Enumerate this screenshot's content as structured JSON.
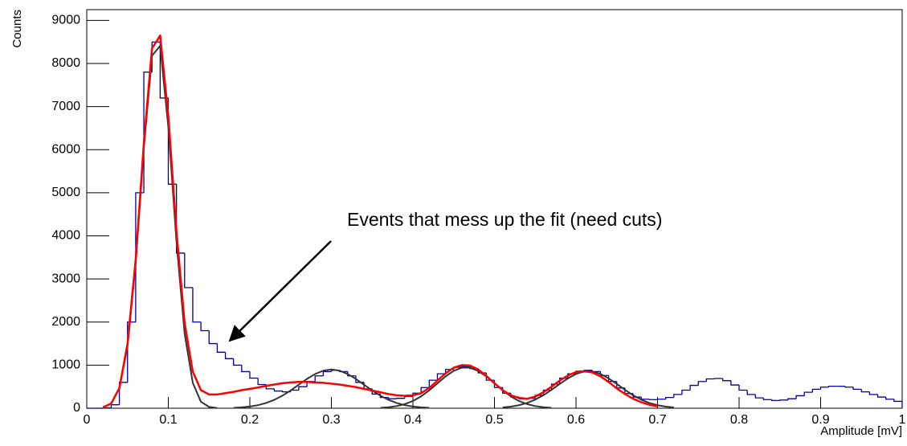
{
  "chart_data": {
    "type": "histogram",
    "x_label": "Amplitude [mV]",
    "y_label": "Counts",
    "annotation": "Events that mess up the fit (need cuts)",
    "xlim": [
      0,
      1
    ],
    "ylim": [
      0,
      9250
    ],
    "xticks": [
      0,
      0.1,
      0.2,
      0.3,
      0.4,
      0.5,
      0.6,
      0.7,
      0.8,
      0.9,
      1
    ],
    "yticks": [
      0,
      1000,
      2000,
      3000,
      4000,
      5000,
      6000,
      7000,
      8000,
      9000
    ],
    "color": "#000099",
    "bins": [
      0,
      0.01,
      0.02,
      0.03,
      0.04,
      0.05,
      0.06,
      0.07,
      0.08,
      0.09,
      0.1,
      0.11,
      0.12,
      0.13,
      0.14,
      0.15,
      0.16,
      0.17,
      0.18,
      0.19,
      0.2,
      0.21,
      0.22,
      0.23,
      0.24,
      0.25,
      0.26,
      0.27,
      0.28,
      0.29,
      0.3,
      0.31,
      0.32,
      0.33,
      0.34,
      0.35,
      0.36,
      0.37,
      0.38,
      0.39,
      0.4,
      0.41,
      0.42,
      0.43,
      0.44,
      0.45,
      0.46,
      0.47,
      0.48,
      0.49,
      0.5,
      0.51,
      0.52,
      0.53,
      0.54,
      0.55,
      0.56,
      0.57,
      0.58,
      0.59,
      0.6,
      0.61,
      0.62,
      0.63,
      0.64,
      0.65,
      0.66,
      0.67,
      0.68,
      0.69,
      0.7,
      0.71,
      0.72,
      0.73,
      0.74,
      0.75,
      0.76,
      0.77,
      0.78,
      0.79,
      0.8,
      0.81,
      0.82,
      0.83,
      0.84,
      0.85,
      0.86,
      0.87,
      0.88,
      0.89,
      0.9,
      0.91,
      0.92,
      0.93,
      0.94,
      0.95,
      0.96,
      0.97,
      0.98,
      0.99,
      1
    ],
    "counts": [
      0,
      0,
      10,
      80,
      600,
      2000,
      5000,
      7800,
      8500,
      7200,
      5200,
      3600,
      2800,
      2000,
      1800,
      1500,
      1300,
      1150,
      1000,
      850,
      700,
      550,
      450,
      400,
      380,
      420,
      500,
      620,
      750,
      850,
      880,
      850,
      750,
      600,
      450,
      330,
      250,
      220,
      230,
      270,
      350,
      480,
      650,
      800,
      900,
      950,
      970,
      920,
      820,
      650,
      480,
      350,
      260,
      220,
      230,
      300,
      420,
      560,
      700,
      800,
      860,
      880,
      850,
      760,
      620,
      470,
      340,
      260,
      210,
      200,
      210,
      250,
      320,
      420,
      530,
      620,
      680,
      690,
      640,
      540,
      420,
      320,
      240,
      200,
      180,
      190,
      220,
      290,
      370,
      440,
      490,
      510,
      510,
      490,
      440,
      380,
      320,
      260,
      210,
      160
    ],
    "series": [
      {
        "color": "#333333",
        "x": [
          0.02,
          0.03,
          0.04,
          0.05,
          0.06,
          0.07,
          0.08,
          0.09,
          0.1,
          0.11,
          0.12,
          0.13,
          0.14,
          0.15,
          0.16
        ],
        "values": [
          21,
          112,
          460,
          1440,
          3360,
          6030,
          8180,
          8410,
          6530,
          3870,
          1730,
          590,
          150,
          30,
          4
        ]
      },
      {
        "color": "#333333",
        "x": [
          0.18,
          0.19,
          0.2,
          0.21,
          0.22,
          0.23,
          0.24,
          0.25,
          0.26,
          0.27,
          0.28,
          0.29,
          0.3,
          0.31,
          0.32,
          0.33,
          0.34,
          0.35,
          0.36,
          0.37,
          0.38,
          0.39,
          0.4,
          0.41,
          0.42
        ],
        "values": [
          10,
          20,
          40,
          71,
          122,
          195,
          292,
          412,
          546,
          680,
          794,
          872,
          900,
          872,
          794,
          680,
          546,
          412,
          292,
          195,
          122,
          71,
          40,
          20,
          10
        ]
      },
      {
        "color": "#333333",
        "x": [
          0.36,
          0.37,
          0.38,
          0.39,
          0.4,
          0.41,
          0.42,
          0.43,
          0.44,
          0.45,
          0.46,
          0.47,
          0.48,
          0.49,
          0.5,
          0.51,
          0.52,
          0.53,
          0.54,
          0.55,
          0.56,
          0.57
        ],
        "values": [
          10,
          24,
          50,
          96,
          168,
          276,
          414,
          576,
          737,
          866,
          941,
          941,
          866,
          737,
          576,
          414,
          276,
          168,
          96,
          50,
          24,
          10
        ]
      },
      {
        "color": "#333333",
        "x": [
          0.51,
          0.52,
          0.53,
          0.54,
          0.55,
          0.56,
          0.57,
          0.58,
          0.59,
          0.6,
          0.61,
          0.62,
          0.63,
          0.64,
          0.65,
          0.66,
          0.67,
          0.68,
          0.69,
          0.7,
          0.71,
          0.72
        ],
        "values": [
          19,
          38,
          70,
          123,
          200,
          301,
          427,
          563,
          692,
          796,
          852,
          852,
          796,
          692,
          563,
          427,
          301,
          200,
          123,
          70,
          38,
          19
        ]
      },
      {
        "color": "#ff0000",
        "x": [
          0.02,
          0.03,
          0.04,
          0.05,
          0.06,
          0.07,
          0.08,
          0.09,
          0.1,
          0.11,
          0.12,
          0.13,
          0.14,
          0.15,
          0.16,
          0.17,
          0.18,
          0.19,
          0.2,
          0.21,
          0.22,
          0.23,
          0.24,
          0.25,
          0.26,
          0.27,
          0.28,
          0.29,
          0.3,
          0.31,
          0.32,
          0.33,
          0.34,
          0.35,
          0.36,
          0.37,
          0.38,
          0.39,
          0.4,
          0.41,
          0.42,
          0.43,
          0.44,
          0.45,
          0.46,
          0.47,
          0.48,
          0.49,
          0.5,
          0.51,
          0.52,
          0.53,
          0.54,
          0.55,
          0.56,
          0.57,
          0.58,
          0.59,
          0.6,
          0.61,
          0.62,
          0.63,
          0.64,
          0.65,
          0.66,
          0.67,
          0.68,
          0.69,
          0.7
        ],
        "values": [
          20,
          110,
          470,
          1500,
          3450,
          6150,
          8350,
          8650,
          6780,
          4100,
          1980,
          850,
          420,
          320,
          320,
          350,
          380,
          420,
          450,
          480,
          520,
          550,
          580,
          600,
          610,
          610,
          600,
          590,
          570,
          550,
          520,
          490,
          450,
          410,
          370,
          330,
          300,
          290,
          300,
          350,
          470,
          640,
          810,
          940,
          1000,
          990,
          900,
          750,
          580,
          420,
          300,
          240,
          220,
          270,
          370,
          500,
          640,
          760,
          840,
          860,
          830,
          740,
          610,
          460,
          330,
          220,
          140,
          80,
          45
        ]
      }
    ]
  }
}
